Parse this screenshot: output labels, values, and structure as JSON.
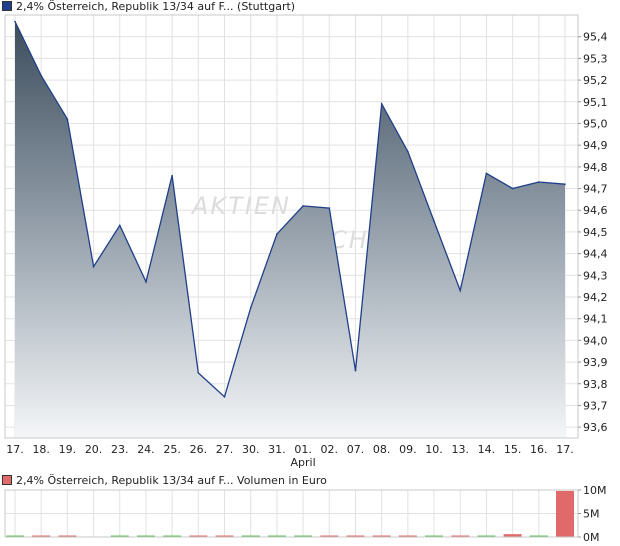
{
  "legend_main": {
    "label": "2,4% Österreich, Republik 13/34 auf F...",
    "market": "(Stuttgart)",
    "color": "#1f3f8a"
  },
  "legend_volume": {
    "label": "2,4% Österreich, Republik 13/34 auf F...",
    "unit": "Volumen in Euro",
    "color": "#e06a6a"
  },
  "watermark": {
    "line1": "AKTIEN",
    "line2": "CHECK"
  },
  "chart_data": [
    {
      "type": "area",
      "x": [
        "17.",
        "18.",
        "19.",
        "20.",
        "23.",
        "24.",
        "25.",
        "26.",
        "27.",
        "30.",
        "31.",
        "01.",
        "02.",
        "07.",
        "08.",
        "09.",
        "10.",
        "13.",
        "14.",
        "15.",
        "16.",
        "17."
      ],
      "month_labels": [
        {
          "index": 11,
          "label": "April"
        }
      ],
      "y": [
        95.47,
        95.22,
        95.02,
        94.34,
        94.53,
        94.27,
        94.76,
        93.85,
        93.74,
        94.15,
        94.49,
        94.62,
        94.61,
        93.86,
        95.09,
        94.87,
        94.55,
        94.23,
        94.77,
        94.7,
        94.73,
        94.72
      ],
      "yticks": [
        "93,6",
        "93,7",
        "93,8",
        "93,9",
        "94,0",
        "94,1",
        "94,2",
        "94,3",
        "94,4",
        "94,5",
        "94,6",
        "94,7",
        "94,8",
        "94,9",
        "95,0",
        "95,1",
        "95,2",
        "95,3",
        "95,4"
      ],
      "ylim": [
        93.55,
        95.5
      ],
      "grid": true,
      "line_color": "#1f3f8a"
    },
    {
      "type": "bar",
      "x": [
        "17.",
        "18.",
        "19.",
        "20.",
        "23.",
        "24.",
        "25.",
        "26.",
        "27.",
        "30.",
        "31.",
        "01.",
        "02.",
        "07.",
        "08.",
        "09.",
        "10.",
        "13.",
        "14.",
        "15.",
        "16.",
        "17."
      ],
      "values": [
        0.15,
        0.1,
        0.1,
        0.0,
        0.1,
        0.1,
        0.25,
        0.1,
        0.1,
        0.1,
        0.1,
        0.1,
        0.1,
        0.1,
        0.1,
        0.1,
        0.1,
        0.1,
        0.1,
        0.6,
        0.1,
        9.8
      ],
      "colors": [
        "green",
        "red",
        "red",
        "green",
        "green",
        "green",
        "green",
        "red",
        "red",
        "green",
        "green",
        "green",
        "red",
        "red",
        "red",
        "red",
        "green",
        "red",
        "green",
        "red",
        "green",
        "red"
      ],
      "yticks": [
        "10M",
        "5M",
        "0M"
      ],
      "ylim": [
        0,
        10
      ],
      "unit": "M"
    }
  ]
}
